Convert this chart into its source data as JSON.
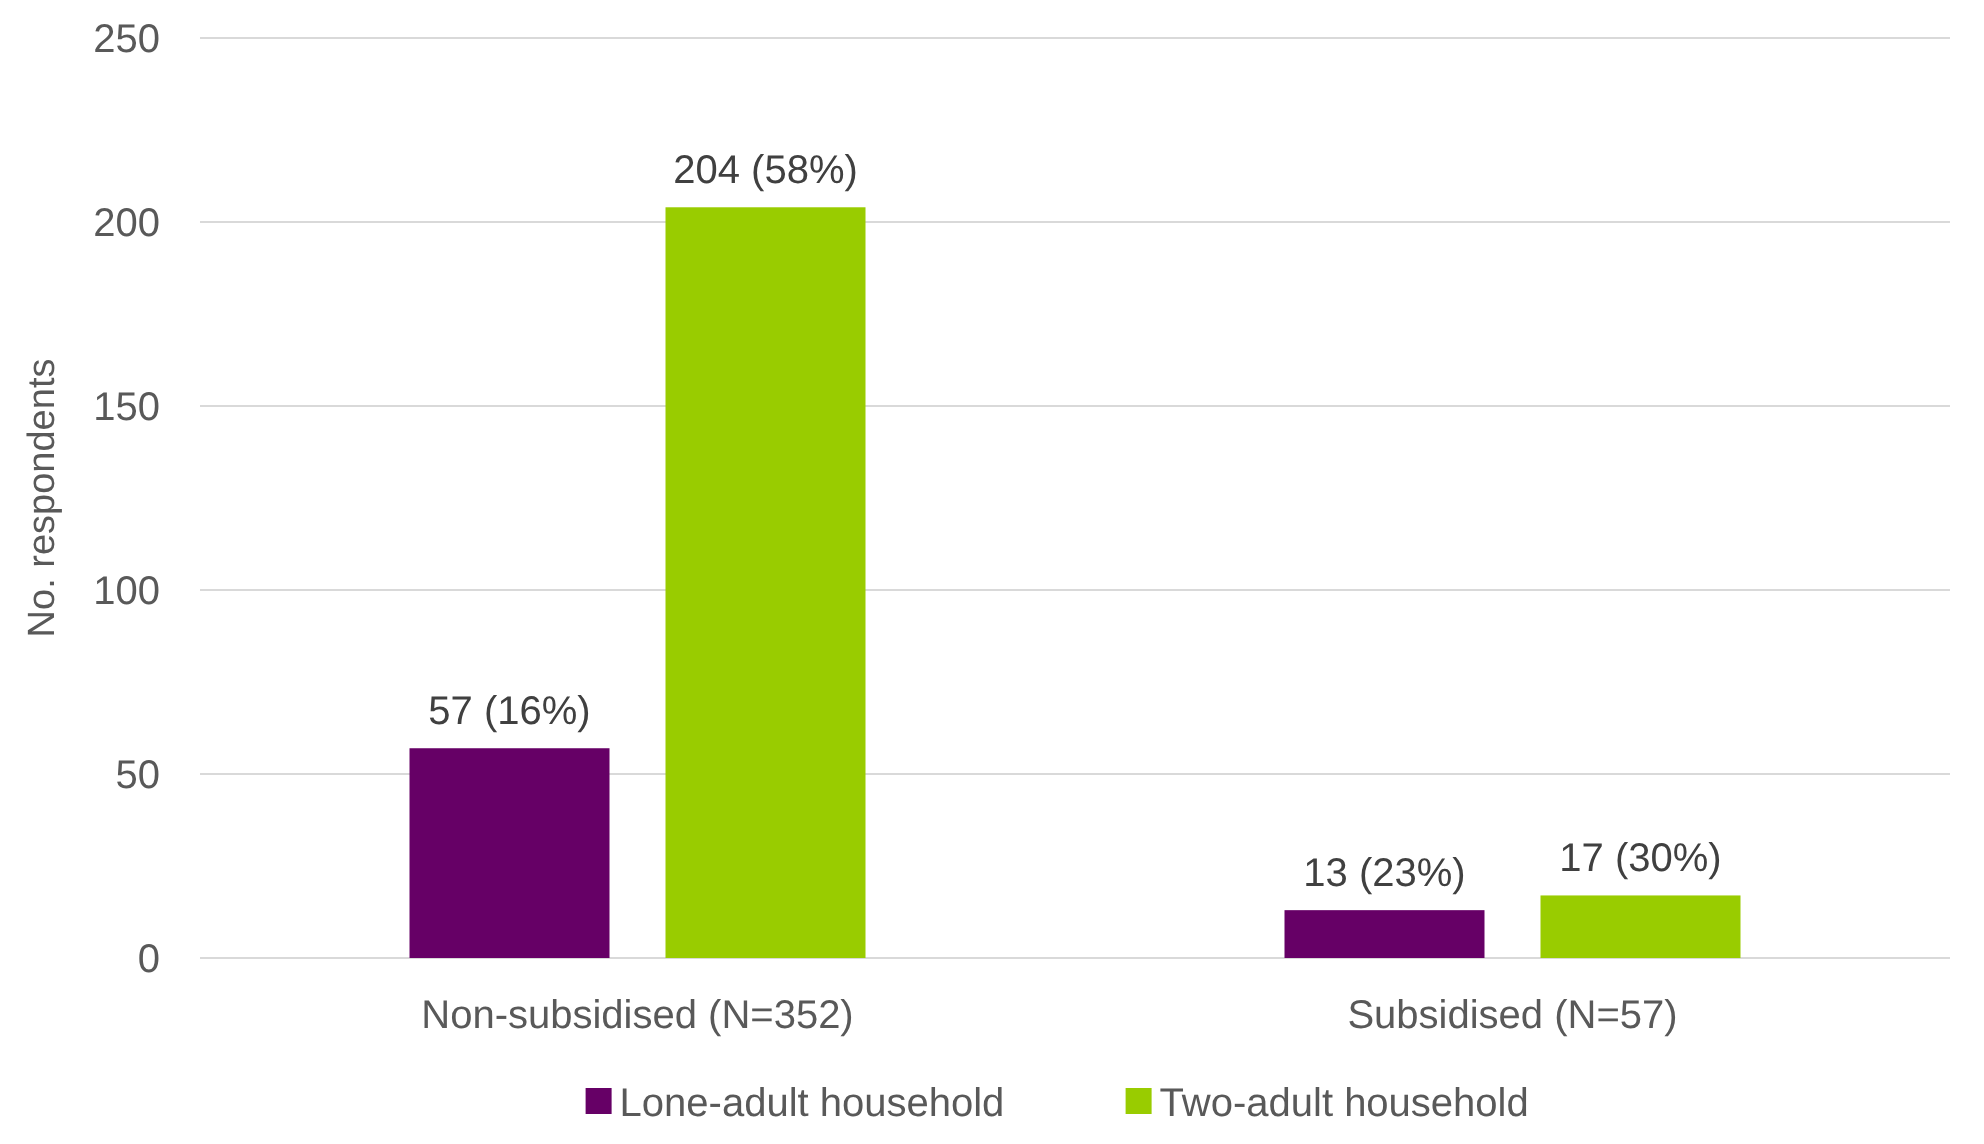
{
  "chart_data": {
    "type": "bar",
    "ylabel": "No. respondents",
    "categories": [
      "Non-subsidised (N=352)",
      "Subsidised (N=57)"
    ],
    "series": [
      {
        "name": "Lone-adult household",
        "color": "#660066",
        "values": [
          57,
          13
        ],
        "value_labels": [
          "57 (16%)",
          "13 (23%)"
        ]
      },
      {
        "name": "Two-adult household",
        "color": "#99cc00",
        "values": [
          204,
          17
        ],
        "value_labels": [
          "204 (58%)",
          "17 (30%)"
        ]
      }
    ],
    "ylim": [
      0,
      250
    ],
    "yticks": [
      0,
      50,
      100,
      150,
      200,
      250
    ],
    "grid": "y",
    "legend": "bottom"
  }
}
